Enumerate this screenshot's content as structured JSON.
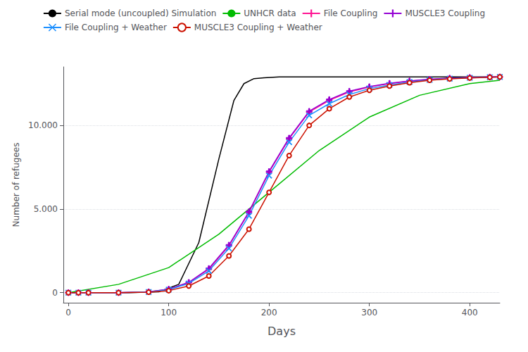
{
  "chart_data": {
    "type": "line",
    "xlabel": "Days",
    "ylabel": "Number of refugees",
    "xlim": [
      -5,
      430
    ],
    "ylim": [
      -600,
      13500
    ],
    "xticks": [
      0,
      100,
      200,
      300,
      400
    ],
    "yticks": [
      0,
      {
        "value": 5000,
        "label": "5.000"
      },
      {
        "value": 10000,
        "label": "10.000"
      }
    ],
    "grid": true,
    "legend": "top",
    "series": [
      {
        "name": "Serial mode (uncoupled) Simulation",
        "color": "#000000",
        "marker": "none",
        "x": [
          0,
          5,
          30,
          60,
          90,
          110,
          130,
          150,
          165,
          175,
          185,
          195,
          210,
          270,
          350,
          430
        ],
        "values": [
          0,
          0,
          0,
          0,
          50,
          500,
          3000,
          8000,
          11500,
          12500,
          12800,
          12850,
          12900,
          12900,
          12900,
          12900
        ]
      },
      {
        "name": "UNHCR data",
        "color": "#00bb00",
        "marker": "none",
        "x": [
          0,
          50,
          100,
          150,
          200,
          250,
          300,
          350,
          400,
          430
        ],
        "values": [
          0,
          500,
          1500,
          3500,
          6000,
          8500,
          10500,
          11800,
          12500,
          12700
        ]
      },
      {
        "name": "File Coupling",
        "color": "#ff1493",
        "marker": "plus",
        "x": [
          0,
          10,
          20,
          50,
          80,
          100,
          120,
          140,
          160,
          180,
          200,
          220,
          240,
          260,
          280,
          300,
          320,
          340,
          360,
          380,
          400,
          420,
          430
        ],
        "values": [
          0,
          0,
          0,
          0,
          50,
          200,
          600,
          1400,
          2800,
          4800,
          7200,
          9200,
          10800,
          11500,
          12000,
          12300,
          12500,
          12650,
          12750,
          12820,
          12860,
          12890,
          12900
        ]
      },
      {
        "name": "MUSCLE3 Coupling",
        "color": "#9400d3",
        "marker": "plus",
        "x": [
          0,
          10,
          20,
          50,
          80,
          100,
          120,
          140,
          160,
          180,
          200,
          220,
          240,
          260,
          280,
          300,
          320,
          340,
          360,
          380,
          400,
          420,
          430
        ],
        "values": [
          0,
          0,
          0,
          0,
          55,
          210,
          620,
          1450,
          2850,
          4850,
          7250,
          9250,
          10850,
          11550,
          12050,
          12320,
          12520,
          12660,
          12760,
          12830,
          12870,
          12895,
          12900
        ]
      },
      {
        "name": "File Coupling + Weather",
        "color": "#1e90ff",
        "marker": "x",
        "x": [
          0,
          10,
          20,
          50,
          80,
          100,
          120,
          140,
          160,
          180,
          200,
          220,
          240,
          260,
          280,
          300,
          320,
          340,
          360,
          380,
          400,
          420,
          430
        ],
        "values": [
          0,
          0,
          0,
          0,
          40,
          180,
          550,
          1300,
          2650,
          4600,
          7000,
          9000,
          10600,
          11300,
          11850,
          12200,
          12420,
          12600,
          12720,
          12800,
          12850,
          12880,
          12900
        ]
      },
      {
        "name": "MUSCLE3 Coupling + Weather",
        "color": "#cc1100",
        "marker": "circle",
        "x": [
          0,
          10,
          20,
          50,
          80,
          100,
          120,
          140,
          160,
          180,
          200,
          220,
          240,
          260,
          280,
          300,
          320,
          340,
          360,
          380,
          400,
          420,
          430
        ],
        "values": [
          0,
          0,
          0,
          0,
          30,
          120,
          400,
          1000,
          2200,
          3800,
          6000,
          8200,
          10000,
          11000,
          11700,
          12100,
          12350,
          12550,
          12700,
          12780,
          12840,
          12880,
          12900
        ]
      }
    ]
  }
}
